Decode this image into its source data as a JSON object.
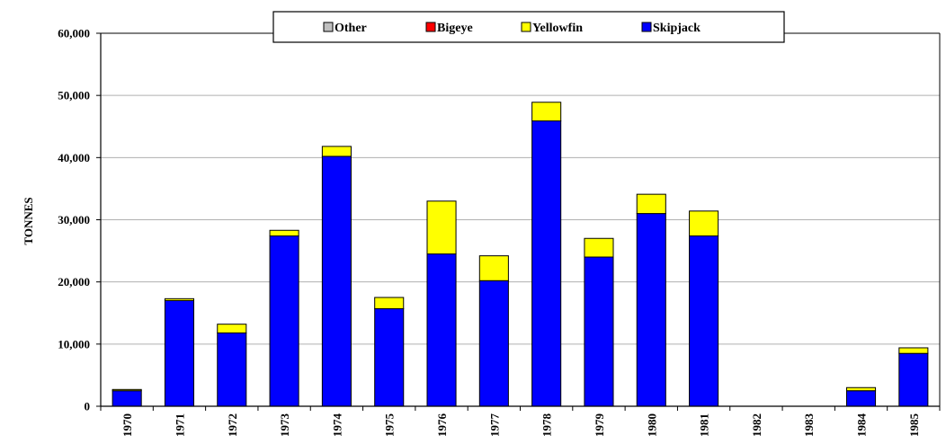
{
  "chart_data": {
    "type": "bar",
    "stacked": true,
    "title": "",
    "xlabel": "",
    "ylabel": "TONNES",
    "ylim": [
      0,
      60000
    ],
    "ytick_labels": [
      "0",
      "10,000",
      "20,000",
      "30,000",
      "40,000",
      "50,000",
      "60,000"
    ],
    "ytick_values": [
      0,
      10000,
      20000,
      30000,
      40000,
      50000,
      60000
    ],
    "grid": true,
    "legend_position": "top",
    "categories": [
      "1970",
      "1971",
      "1972",
      "1973",
      "1974",
      "1975",
      "1976",
      "1977",
      "1978",
      "1979",
      "1980",
      "1981",
      "1982",
      "1983",
      "1984",
      "1985"
    ],
    "legend_order": [
      "Other",
      "Bigeye",
      "Yellowfin",
      "Skipjack"
    ],
    "series": [
      {
        "name": "Skipjack",
        "color": "#0000ff",
        "values": [
          2500,
          17000,
          11800,
          27400,
          40200,
          15700,
          24500,
          20200,
          45900,
          24000,
          31000,
          27400,
          0,
          0,
          2500,
          8500
        ]
      },
      {
        "name": "Yellowfin",
        "color": "#ffff00",
        "values": [
          200,
          300,
          1400,
          900,
          1600,
          1800,
          8500,
          4000,
          3000,
          3000,
          3100,
          4000,
          0,
          0,
          500,
          900
        ]
      },
      {
        "name": "Bigeye",
        "color": "#ff0000",
        "values": [
          0,
          0,
          0,
          0,
          0,
          0,
          0,
          0,
          0,
          0,
          0,
          0,
          0,
          0,
          0,
          0
        ]
      },
      {
        "name": "Other",
        "color": "#c0c0c0",
        "values": [
          0,
          0,
          0,
          0,
          0,
          0,
          0,
          0,
          0,
          0,
          0,
          0,
          0,
          0,
          0,
          0
        ]
      }
    ]
  }
}
